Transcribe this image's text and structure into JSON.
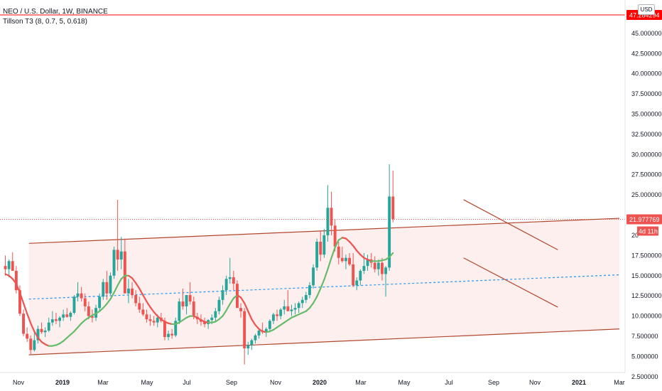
{
  "header": {
    "title": "NEO / U.S. Dollar, 1W, BINANCE",
    "indicator": "Tillson T3 (8, 0.7, 5, 0.618)",
    "currency": "USD"
  },
  "price_labels": {
    "top_line": "47.284294",
    "current_price": "21.977769",
    "countdown": "4d 11h"
  },
  "colors": {
    "bull": "#26a69a",
    "bear": "#ef5350",
    "t3_up": "#66bb6a",
    "t3_down": "#ef5350",
    "channel": "#b2472e",
    "channel_fill": "#fdeaea",
    "midline": "#2196f3",
    "top_line": "#ff0000"
  },
  "chart_data": {
    "type": "candlestick",
    "title": "NEO / U.S. Dollar, 1W, BINANCE",
    "x_ticks": [
      "Nov",
      "2019",
      "Mar",
      "May",
      "Jul",
      "Sep",
      "Nov",
      "2020",
      "Mar",
      "May",
      "Jul",
      "Sep",
      "Nov",
      "2021",
      "Mar"
    ],
    "y_ticks": [
      "45.000000",
      "42.500000",
      "40.000000",
      "37.500000",
      "35.000000",
      "32.500000",
      "30.000000",
      "27.500000",
      "25.000000",
      "20",
      "17.500000",
      "15.000000",
      "12.500000",
      "10.000000",
      "7.500000",
      "5.000000",
      "2.500000"
    ],
    "ylim": [
      1.6,
      48.6
    ],
    "horizontal_line": 47.284294,
    "last_price": 21.977769,
    "candles_ohlc": [
      [
        16.2,
        17.5,
        15.0,
        15.8
      ],
      [
        15.8,
        17.0,
        14.8,
        16.8
      ],
      [
        16.8,
        17.9,
        15.8,
        15.6
      ],
      [
        15.6,
        16.2,
        12.8,
        13.2
      ],
      [
        13.2,
        13.8,
        10.0,
        10.3
      ],
      [
        10.3,
        10.8,
        7.5,
        7.8
      ],
      [
        7.8,
        8.6,
        6.8,
        7.2
      ],
      [
        7.2,
        7.6,
        5.3,
        5.8
      ],
      [
        5.8,
        8.2,
        5.6,
        7.0
      ],
      [
        7.0,
        8.8,
        6.6,
        8.4
      ],
      [
        8.4,
        9.2,
        7.8,
        8.0
      ],
      [
        8.0,
        8.6,
        7.4,
        8.2
      ],
      [
        8.2,
        9.8,
        8.0,
        9.2
      ],
      [
        9.2,
        10.6,
        8.8,
        9.6
      ],
      [
        9.6,
        10.4,
        9.0,
        9.4
      ],
      [
        9.4,
        10.0,
        8.6,
        9.8
      ],
      [
        9.8,
        10.8,
        9.4,
        10.2
      ],
      [
        10.2,
        11.0,
        9.8,
        9.9
      ],
      [
        9.9,
        10.6,
        9.4,
        10.4
      ],
      [
        10.4,
        12.6,
        10.2,
        12.4
      ],
      [
        12.4,
        14.2,
        11.8,
        12.8
      ],
      [
        12.8,
        13.6,
        11.8,
        12.2
      ],
      [
        12.2,
        12.8,
        10.6,
        11.2
      ],
      [
        11.2,
        11.8,
        9.6,
        10.0
      ],
      [
        10.0,
        10.8,
        9.2,
        9.8
      ],
      [
        9.8,
        11.4,
        9.4,
        11.0
      ],
      [
        11.0,
        12.8,
        10.6,
        12.4
      ],
      [
        12.4,
        14.6,
        12.0,
        14.2
      ],
      [
        14.2,
        15.6,
        12.0,
        12.8
      ],
      [
        12.8,
        15.4,
        12.6,
        15.0
      ],
      [
        15.0,
        18.6,
        14.6,
        18.2
      ],
      [
        18.2,
        24.4,
        15.6,
        17.0
      ],
      [
        17.0,
        19.8,
        15.8,
        18.0
      ],
      [
        18.0,
        19.6,
        14.8,
        12.8
      ],
      [
        12.8,
        14.6,
        11.6,
        13.4
      ],
      [
        13.4,
        14.2,
        12.2,
        12.6
      ],
      [
        12.6,
        13.2,
        11.2,
        11.6
      ],
      [
        11.6,
        12.4,
        10.4,
        10.8
      ],
      [
        10.8,
        11.6,
        10.0,
        10.2
      ],
      [
        10.2,
        10.8,
        9.2,
        9.6
      ],
      [
        9.6,
        10.2,
        8.8,
        9.4
      ],
      [
        9.4,
        10.0,
        8.8,
        9.2
      ],
      [
        9.2,
        10.2,
        8.6,
        9.8
      ],
      [
        9.8,
        10.4,
        9.2,
        9.4
      ],
      [
        9.4,
        9.8,
        7.0,
        7.4
      ],
      [
        7.4,
        8.2,
        7.0,
        7.8
      ],
      [
        7.8,
        8.4,
        7.2,
        7.6
      ],
      [
        7.6,
        9.8,
        7.4,
        9.4
      ],
      [
        9.4,
        12.2,
        9.0,
        11.8
      ],
      [
        11.8,
        13.4,
        10.8,
        11.2
      ],
      [
        11.2,
        12.0,
        10.2,
        12.6
      ],
      [
        12.6,
        14.2,
        11.4,
        11.8
      ],
      [
        11.8,
        12.4,
        9.6,
        9.9
      ],
      [
        9.9,
        10.4,
        9.0,
        9.6
      ],
      [
        9.6,
        10.2,
        8.8,
        9.3
      ],
      [
        9.3,
        9.8,
        8.6,
        9.0
      ],
      [
        9.0,
        9.6,
        8.4,
        9.5
      ],
      [
        9.5,
        10.2,
        9.0,
        9.8
      ],
      [
        9.8,
        11.0,
        9.4,
        10.6
      ],
      [
        10.6,
        12.4,
        10.2,
        12.0
      ],
      [
        12.0,
        13.8,
        11.4,
        13.2
      ],
      [
        13.2,
        15.0,
        12.6,
        14.6
      ],
      [
        14.6,
        17.2,
        14.0,
        14.8
      ],
      [
        14.8,
        15.6,
        13.2,
        14.0
      ],
      [
        14.0,
        14.4,
        11.6,
        11.0
      ],
      [
        11.0,
        11.6,
        9.8,
        10.6
      ],
      [
        10.6,
        11.0,
        4.0,
        6.0
      ],
      [
        6.0,
        6.8,
        5.2,
        6.4
      ],
      [
        6.4,
        7.2,
        5.8,
        7.0
      ],
      [
        7.0,
        7.8,
        6.6,
        7.6
      ],
      [
        7.6,
        8.4,
        7.2,
        8.2
      ],
      [
        8.2,
        9.2,
        7.8,
        8.0
      ],
      [
        8.0,
        8.6,
        7.4,
        8.4
      ],
      [
        8.4,
        9.6,
        8.0,
        9.4
      ],
      [
        9.4,
        10.4,
        9.0,
        10.2
      ],
      [
        10.2,
        10.8,
        9.4,
        10.0
      ],
      [
        10.0,
        11.0,
        9.6,
        10.8
      ],
      [
        10.8,
        12.0,
        10.2,
        11.2
      ],
      [
        11.2,
        13.2,
        10.6,
        10.6
      ],
      [
        10.6,
        11.4,
        10.0,
        10.8
      ],
      [
        10.8,
        11.6,
        10.2,
        11.0
      ],
      [
        11.0,
        11.8,
        10.4,
        11.6
      ],
      [
        11.6,
        12.4,
        11.0,
        12.0
      ],
      [
        12.0,
        13.0,
        11.6,
        12.6
      ],
      [
        12.6,
        14.2,
        12.2,
        13.8
      ],
      [
        13.8,
        16.4,
        13.4,
        16.0
      ],
      [
        16.0,
        19.6,
        15.6,
        19.2
      ],
      [
        19.2,
        20.6,
        16.8,
        17.6
      ],
      [
        17.6,
        20.8,
        17.2,
        20.0
      ],
      [
        20.0,
        26.2,
        19.2,
        23.4
      ],
      [
        23.4,
        25.4,
        20.0,
        21.2
      ],
      [
        21.2,
        22.0,
        18.0,
        18.6
      ],
      [
        18.6,
        19.2,
        16.4,
        17.2
      ],
      [
        17.2,
        18.6,
        16.6,
        16.8
      ],
      [
        16.8,
        17.6,
        15.8,
        17.2
      ],
      [
        17.2,
        17.8,
        16.2,
        16.4
      ],
      [
        16.4,
        17.8,
        13.6,
        13.8
      ],
      [
        13.8,
        14.8,
        13.2,
        14.4
      ],
      [
        14.4,
        15.8,
        13.8,
        15.6
      ],
      [
        15.6,
        17.8,
        15.2,
        16.2
      ],
      [
        16.2,
        17.6,
        15.6,
        17.0
      ],
      [
        17.0,
        17.8,
        16.0,
        16.6
      ],
      [
        16.6,
        17.4,
        15.4,
        15.8
      ],
      [
        15.8,
        17.0,
        15.0,
        16.6
      ],
      [
        16.6,
        17.2,
        14.4,
        15.2
      ],
      [
        15.2,
        16.2,
        12.4,
        16.0
      ],
      [
        16.0,
        28.8,
        15.6,
        24.8
      ],
      [
        24.8,
        28.0,
        21.6,
        22.0
      ]
    ],
    "t3": [
      15.2,
      15.0,
      14.6,
      14.0,
      12.9,
      11.6,
      10.3,
      9.1,
      8.1,
      7.3,
      6.8,
      6.5,
      6.3,
      6.3,
      6.4,
      6.6,
      6.9,
      7.3,
      7.7,
      8.1,
      8.6,
      9.1,
      9.5,
      9.8,
      10.1,
      10.3,
      10.6,
      11.0,
      11.5,
      12.1,
      12.9,
      13.8,
      14.6,
      15.0,
      15.0,
      14.7,
      14.1,
      13.4,
      12.6,
      11.8,
      11.1,
      10.5,
      10.0,
      9.6,
      9.3,
      9.1,
      9.0,
      9.0,
      9.2,
      9.5,
      9.8,
      10.0,
      10.0,
      9.8,
      9.5,
      9.3,
      9.2,
      9.2,
      9.3,
      9.6,
      10.0,
      10.7,
      11.5,
      12.2,
      12.6,
      12.3,
      11.6,
      10.6,
      9.6,
      8.9,
      8.4,
      8.1,
      8.0,
      8.1,
      8.3,
      8.6,
      8.9,
      9.2,
      9.5,
      9.8,
      10.0,
      10.2,
      10.4,
      10.6,
      11.0,
      11.6,
      12.4,
      13.4,
      14.5,
      15.8,
      17.2,
      18.5,
      19.4,
      19.7,
      19.6,
      19.2,
      18.7,
      18.1,
      17.6,
      17.2,
      17.0,
      16.8,
      16.8,
      16.8,
      16.9,
      17.0,
      17.3,
      17.8
    ],
    "channel": {
      "lower": [
        [
          7,
          5.2
        ],
        [
          170,
          8.4
        ]
      ],
      "upper": [
        [
          7,
          19.0
        ],
        [
          170,
          22.1
        ]
      ],
      "mid": [
        [
          7,
          12.1
        ],
        [
          170,
          15.1
        ]
      ]
    },
    "flag": {
      "upper": [
        [
          127,
          24.4
        ],
        [
          153,
          18.2
        ]
      ],
      "lower": [
        [
          127,
          17.2
        ],
        [
          153,
          11.1
        ]
      ]
    }
  }
}
